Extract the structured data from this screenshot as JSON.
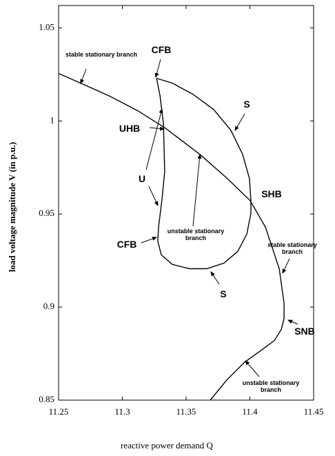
{
  "chart_data": {
    "type": "line",
    "xlabel": "reactive power demand Q",
    "ylabel": "load voltage magnitude V (in p.u.)",
    "xlim": [
      11.25,
      11.45
    ],
    "xticks": [
      11.25,
      11.3,
      11.35,
      11.4,
      11.45
    ],
    "ylim": [
      0.85,
      1.062
    ],
    "yticks": [
      0.85,
      0.9,
      0.95,
      1,
      1.05
    ],
    "series": [
      {
        "color": "#000000",
        "x": [
          11.25,
          11.2673,
          11.2905,
          11.3122,
          11.3338,
          11.3608,
          11.3824,
          11.4003,
          11.4122,
          11.423,
          11.4268,
          11.4268,
          11.4246,
          11.4192,
          11.4095,
          11.3959,
          11.3824,
          11.3689
        ],
        "values": [
          1.0255,
          1.0203,
          1.0132,
          1.0054,
          0.9961,
          0.982,
          0.969,
          0.9571,
          0.9429,
          0.9206,
          0.902,
          0.8939,
          0.8879,
          0.882,
          0.8771,
          0.8704,
          0.8612,
          0.85
        ]
      },
      {
        "color": "#000000",
        "x": [
          11.3268,
          11.3295,
          11.3322,
          11.3332,
          11.3311,
          11.3284,
          11.3278,
          11.3305,
          11.3392,
          11.3527,
          11.3662,
          11.3797,
          11.3905,
          11.3976,
          11.4008,
          11.4008,
          11.3997,
          11.3943,
          11.3851,
          11.3716,
          11.3554,
          11.3392,
          11.3268
        ],
        "values": [
          1.0229,
          1.0136,
          0.9987,
          0.9727,
          0.9578,
          0.9429,
          0.9355,
          0.9281,
          0.9229,
          0.9206,
          0.9206,
          0.9236,
          0.9299,
          0.9392,
          0.9504,
          0.9571,
          0.969,
          0.982,
          0.995,
          1.0061,
          1.0143,
          1.0203,
          1.0229
        ]
      }
    ],
    "annotations": [
      "stable stationary branch",
      "CFB",
      "S",
      "UHB",
      "U",
      "unstable stationary branch",
      "SHB",
      "stable stationary branch",
      "CFB",
      "S",
      "SNB",
      "unstable stationary branch"
    ]
  }
}
